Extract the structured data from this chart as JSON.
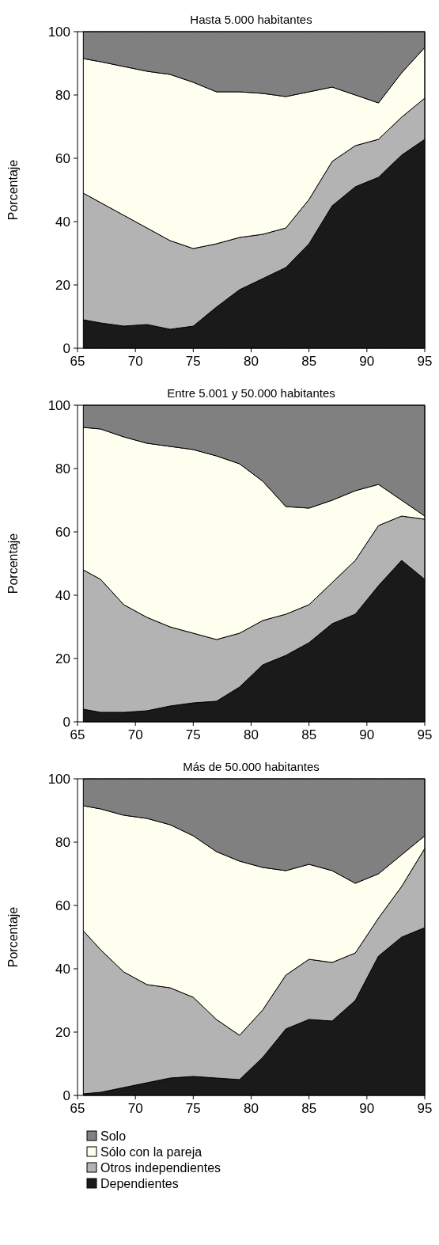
{
  "chart_data": [
    {
      "type": "area",
      "stacked": true,
      "title": "Hasta 5.000 habitantes",
      "ylabel": "Porcentaje",
      "x": [
        65.5,
        67,
        69,
        71,
        73,
        75,
        77,
        79,
        81,
        83,
        85,
        87,
        89,
        91,
        93,
        95
      ],
      "xlim": [
        65,
        95
      ],
      "xticks": [
        65,
        70,
        75,
        80,
        85,
        90,
        95
      ],
      "ylim": [
        0,
        100
      ],
      "yticks": [
        0,
        20,
        40,
        60,
        80,
        100
      ],
      "legend": false,
      "series": [
        {
          "color": "#1a1a1a",
          "values": [
            9,
            8,
            7,
            7.5,
            6,
            7,
            13,
            18.5,
            22,
            25.5,
            33,
            45,
            51,
            54,
            61,
            66
          ]
        },
        {
          "color": "#b3b3b3",
          "values": [
            40,
            38,
            35,
            30.5,
            28,
            24.5,
            20,
            16.5,
            14,
            12.5,
            14,
            14,
            13,
            12,
            12,
            13
          ]
        },
        {
          "color": "#fffff0",
          "values": [
            42.5,
            44.5,
            47,
            49.5,
            52.5,
            52.5,
            48,
            46,
            44.5,
            41.5,
            34,
            23.5,
            16,
            11.5,
            14,
            16
          ]
        },
        {
          "color": "#808080",
          "values": [
            8.5,
            9.5,
            11,
            12.5,
            13.5,
            16,
            19,
            19,
            19.5,
            20.5,
            19,
            17.5,
            20,
            22.5,
            13,
            5
          ]
        }
      ]
    },
    {
      "type": "area",
      "stacked": true,
      "title": "Entre 5.001 y 50.000 habitantes",
      "ylabel": "Porcentaje",
      "x": [
        65.5,
        67,
        69,
        71,
        73,
        75,
        77,
        79,
        81,
        83,
        85,
        87,
        89,
        91,
        93,
        95
      ],
      "xlim": [
        65,
        95
      ],
      "xticks": [
        65,
        70,
        75,
        80,
        85,
        90,
        95
      ],
      "ylim": [
        0,
        100
      ],
      "yticks": [
        0,
        20,
        40,
        60,
        80,
        100
      ],
      "legend": false,
      "series": [
        {
          "color": "#1a1a1a",
          "values": [
            4,
            3,
            3,
            3.5,
            5,
            6,
            6.5,
            11,
            18,
            21,
            25,
            31,
            34,
            43,
            51,
            45
          ]
        },
        {
          "color": "#b3b3b3",
          "values": [
            44,
            42,
            34,
            29.5,
            25,
            22,
            19.5,
            17,
            14,
            13,
            12,
            13,
            17,
            19,
            14,
            19
          ]
        },
        {
          "color": "#fffff0",
          "values": [
            45,
            47.5,
            53,
            55,
            57,
            58,
            58,
            53.5,
            44,
            34,
            30.5,
            26,
            22,
            13,
            5,
            1
          ]
        },
        {
          "color": "#808080",
          "values": [
            7,
            7.5,
            10,
            12,
            13,
            14,
            16,
            18.5,
            24,
            32,
            32.5,
            30,
            27,
            25,
            30,
            35
          ]
        }
      ]
    },
    {
      "type": "area",
      "stacked": true,
      "title": "Más de 50.000 habitantes",
      "ylabel": "Porcentaje",
      "x": [
        65.5,
        67,
        69,
        71,
        73,
        75,
        77,
        79,
        81,
        83,
        85,
        87,
        89,
        91,
        93,
        95
      ],
      "xlim": [
        65,
        95
      ],
      "xticks": [
        65,
        70,
        75,
        80,
        85,
        90,
        95
      ],
      "ylim": [
        0,
        100
      ],
      "yticks": [
        0,
        20,
        40,
        60,
        80,
        100
      ],
      "legend": "bottom",
      "series": [
        {
          "name": "Dependientes",
          "color": "#1a1a1a",
          "values": [
            0.5,
            1,
            2.5,
            4,
            5.5,
            6,
            5.5,
            5,
            12,
            21,
            24,
            23.5,
            30,
            44,
            50,
            53
          ]
        },
        {
          "name": "Otros independientes",
          "color": "#b3b3b3",
          "values": [
            51.5,
            45,
            36.5,
            31,
            28.5,
            25,
            18.5,
            14,
            15,
            17,
            19,
            18.5,
            15,
            12,
            16,
            25
          ]
        },
        {
          "name": "Sólo con la pareja",
          "color": "#fffff0",
          "values": [
            39.5,
            44.5,
            49.5,
            52.5,
            51.5,
            51,
            53,
            55,
            45,
            33,
            30,
            29,
            22,
            14,
            10,
            4
          ]
        },
        {
          "name": "Solo",
          "color": "#808080",
          "values": [
            8.5,
            9.5,
            11.5,
            12.5,
            14.5,
            18,
            23,
            26,
            28,
            29,
            27,
            29,
            33,
            30,
            24,
            18
          ]
        }
      ]
    }
  ]
}
